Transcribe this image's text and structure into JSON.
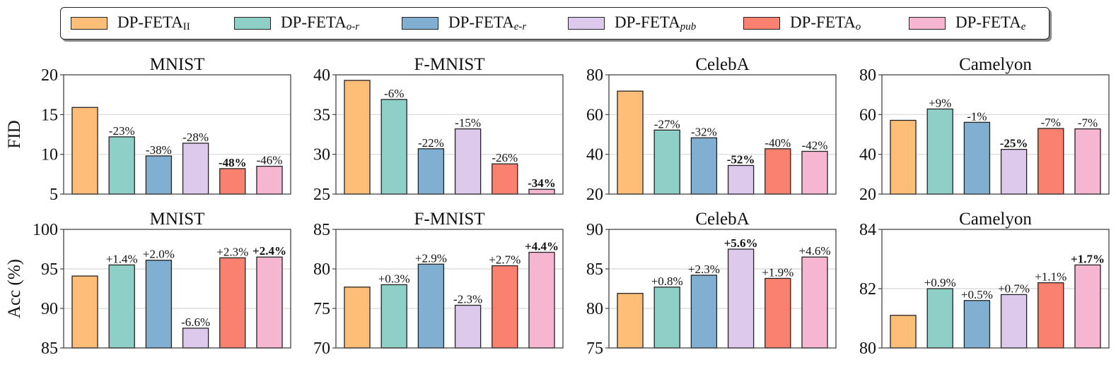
{
  "legend": {
    "items": [
      {
        "base": "DP-FETA",
        "sub": "II",
        "sub_style": "upright",
        "color": "#FFBE78"
      },
      {
        "base": "DP-FETA",
        "sub": "o-r",
        "sub_style": "italic",
        "color": "#8ECFC7"
      },
      {
        "base": "DP-FETA",
        "sub": "e-r",
        "sub_style": "italic",
        "color": "#80AFD2"
      },
      {
        "base": "DP-FETA",
        "sub": "pub",
        "sub_style": "italic",
        "color": "#DDC9EC"
      },
      {
        "base": "DP-FETA",
        "sub": "o",
        "sub_style": "italic",
        "color": "#FA8070"
      },
      {
        "base": "DP-FETA",
        "sub": "e",
        "sub_style": "italic",
        "color": "#F6B6D2"
      }
    ]
  },
  "chart_data": [
    {
      "type": "bar",
      "row": "FID",
      "title": "MNIST",
      "ylabel": "FID",
      "ylim": [
        5,
        20
      ],
      "yticks": [
        5,
        10,
        15,
        20
      ],
      "grid": true,
      "series_names": [
        "DP-FETA_II",
        "DP-FETA_o-r",
        "DP-FETA_e-r",
        "DP-FETA_pub",
        "DP-FETA_o",
        "DP-FETA_e"
      ],
      "values": [
        15.9,
        12.2,
        9.8,
        11.4,
        8.2,
        8.5
      ],
      "labels": [
        "",
        "-23%",
        "-38%",
        "-28%",
        "-48%",
        "-46%"
      ],
      "bold": [
        false,
        false,
        false,
        false,
        true,
        false
      ]
    },
    {
      "type": "bar",
      "row": "FID",
      "title": "F-MNIST",
      "ylabel": "",
      "ylim": [
        25,
        40
      ],
      "yticks": [
        25,
        30,
        35,
        40
      ],
      "grid": true,
      "series_names": [
        "DP-FETA_II",
        "DP-FETA_o-r",
        "DP-FETA_e-r",
        "DP-FETA_pub",
        "DP-FETA_o",
        "DP-FETA_e"
      ],
      "values": [
        39.3,
        36.9,
        30.7,
        33.2,
        28.8,
        25.6
      ],
      "labels": [
        "",
        "-6%",
        "-22%",
        "-15%",
        "-26%",
        "-34%"
      ],
      "bold": [
        false,
        false,
        false,
        false,
        false,
        true
      ]
    },
    {
      "type": "bar",
      "row": "FID",
      "title": "CelebA",
      "ylabel": "",
      "ylim": [
        20,
        80
      ],
      "yticks": [
        20,
        40,
        60,
        80
      ],
      "grid": true,
      "series_names": [
        "DP-FETA_II",
        "DP-FETA_o-r",
        "DP-FETA_e-r",
        "DP-FETA_pub",
        "DP-FETA_o",
        "DP-FETA_e"
      ],
      "values": [
        71.8,
        52.2,
        48.3,
        34.4,
        42.8,
        41.5
      ],
      "labels": [
        "",
        "-27%",
        "-32%",
        "-52%",
        "-40%",
        "-42%"
      ],
      "bold": [
        false,
        false,
        false,
        true,
        false,
        false
      ]
    },
    {
      "type": "bar",
      "row": "FID",
      "title": "Camelyon",
      "ylabel": "",
      "ylim": [
        20,
        80
      ],
      "yticks": [
        20,
        40,
        60,
        80
      ],
      "grid": true,
      "series_names": [
        "DP-FETA_II",
        "DP-FETA_o-r",
        "DP-FETA_e-r",
        "DP-FETA_pub",
        "DP-FETA_o",
        "DP-FETA_e"
      ],
      "values": [
        57.1,
        62.8,
        56.1,
        42.5,
        53.0,
        52.8
      ],
      "labels": [
        "",
        "+9%",
        "-1%",
        "-25%",
        "-7%",
        "-7%"
      ],
      "bold": [
        false,
        false,
        false,
        true,
        false,
        false
      ]
    },
    {
      "type": "bar",
      "row": "Acc",
      "title": "MNIST",
      "ylabel": "Acc (%)",
      "ylim": [
        85,
        100
      ],
      "yticks": [
        85,
        90,
        95,
        100
      ],
      "grid": true,
      "series_names": [
        "DP-FETA_II",
        "DP-FETA_o-r",
        "DP-FETA_e-r",
        "DP-FETA_pub",
        "DP-FETA_o",
        "DP-FETA_e"
      ],
      "values": [
        94.1,
        95.5,
        96.1,
        87.5,
        96.4,
        96.5
      ],
      "labels": [
        "",
        "+1.4%",
        "+2.0%",
        "-6.6%",
        "+2.3%",
        "+2.4%"
      ],
      "bold": [
        false,
        false,
        false,
        false,
        false,
        true
      ]
    },
    {
      "type": "bar",
      "row": "Acc",
      "title": "F-MNIST",
      "ylabel": "",
      "ylim": [
        70,
        85
      ],
      "yticks": [
        70,
        75,
        80,
        85
      ],
      "grid": true,
      "series_names": [
        "DP-FETA_II",
        "DP-FETA_o-r",
        "DP-FETA_e-r",
        "DP-FETA_pub",
        "DP-FETA_o",
        "DP-FETA_e"
      ],
      "values": [
        77.7,
        78.0,
        80.6,
        75.4,
        80.4,
        82.1
      ],
      "labels": [
        "",
        "+0.3%",
        "+2.9%",
        "-2.3%",
        "+2.7%",
        "+4.4%"
      ],
      "bold": [
        false,
        false,
        false,
        false,
        false,
        true
      ]
    },
    {
      "type": "bar",
      "row": "Acc",
      "title": "CelebA",
      "ylabel": "",
      "ylim": [
        75,
        90
      ],
      "yticks": [
        75,
        80,
        85,
        90
      ],
      "grid": true,
      "series_names": [
        "DP-FETA_II",
        "DP-FETA_o-r",
        "DP-FETA_e-r",
        "DP-FETA_pub",
        "DP-FETA_o",
        "DP-FETA_e"
      ],
      "values": [
        81.9,
        82.7,
        84.2,
        87.5,
        83.8,
        86.5
      ],
      "labels": [
        "",
        "+0.8%",
        "+2.3%",
        "+5.6%",
        "+1.9%",
        "+4.6%"
      ],
      "bold": [
        false,
        false,
        false,
        true,
        false,
        false
      ]
    },
    {
      "type": "bar",
      "row": "Acc",
      "title": "Camelyon",
      "ylabel": "",
      "ylim": [
        80,
        84
      ],
      "yticks": [
        80,
        82,
        84
      ],
      "grid": true,
      "series_names": [
        "DP-FETA_II",
        "DP-FETA_o-r",
        "DP-FETA_e-r",
        "DP-FETA_pub",
        "DP-FETA_o",
        "DP-FETA_e"
      ],
      "values": [
        81.1,
        82.0,
        81.6,
        81.8,
        82.2,
        82.8
      ],
      "labels": [
        "",
        "+0.9%",
        "+0.5%",
        "+0.7%",
        "+1.1%",
        "+1.7%"
      ],
      "bold": [
        false,
        false,
        false,
        false,
        false,
        true
      ]
    }
  ]
}
